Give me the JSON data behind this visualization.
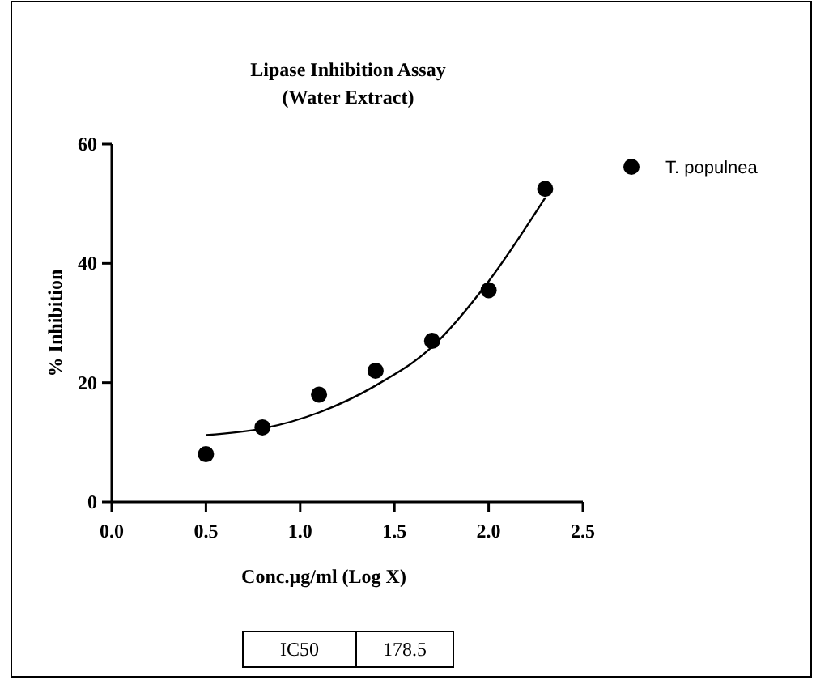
{
  "chart_data": {
    "type": "scatter",
    "title": "Lipase Inhibition Assay",
    "subtitle": "(Water Extract)",
    "xlabel": "Conc.µg/ml (Log X)",
    "ylabel": "% Inhibition",
    "xlim": [
      0,
      2.5
    ],
    "xticks": [
      {
        "value": 0,
        "label": "0.0"
      },
      {
        "value": 0.5,
        "label": "0.5"
      },
      {
        "value": 1,
        "label": "1.0"
      },
      {
        "value": 1.5,
        "label": "1.5"
      },
      {
        "value": 2,
        "label": "2.0"
      },
      {
        "value": 2.5,
        "label": "2.5"
      }
    ],
    "ylim": [
      0,
      60
    ],
    "yticks": [
      0,
      20,
      40,
      60
    ],
    "legend": "top right",
    "marker": "circle",
    "series": [
      {
        "name": "T. populnea",
        "color": "#000000",
        "x": [
          0.5,
          0.8,
          1.1,
          1.4,
          1.7,
          2.0,
          2.3
        ],
        "values": [
          8,
          12.5,
          18,
          22,
          27,
          35.5,
          52.5
        ]
      },
      {
        "type": "line",
        "marker": "none",
        "color": "#000000",
        "x": [
          0.5,
          0.8,
          1.1,
          1.4,
          1.7,
          2.0,
          2.3
        ],
        "values": [
          11.2,
          12.3,
          15,
          19.5,
          26,
          37,
          51
        ]
      }
    ],
    "annotations": [
      "IC50",
      "178.5"
    ]
  }
}
